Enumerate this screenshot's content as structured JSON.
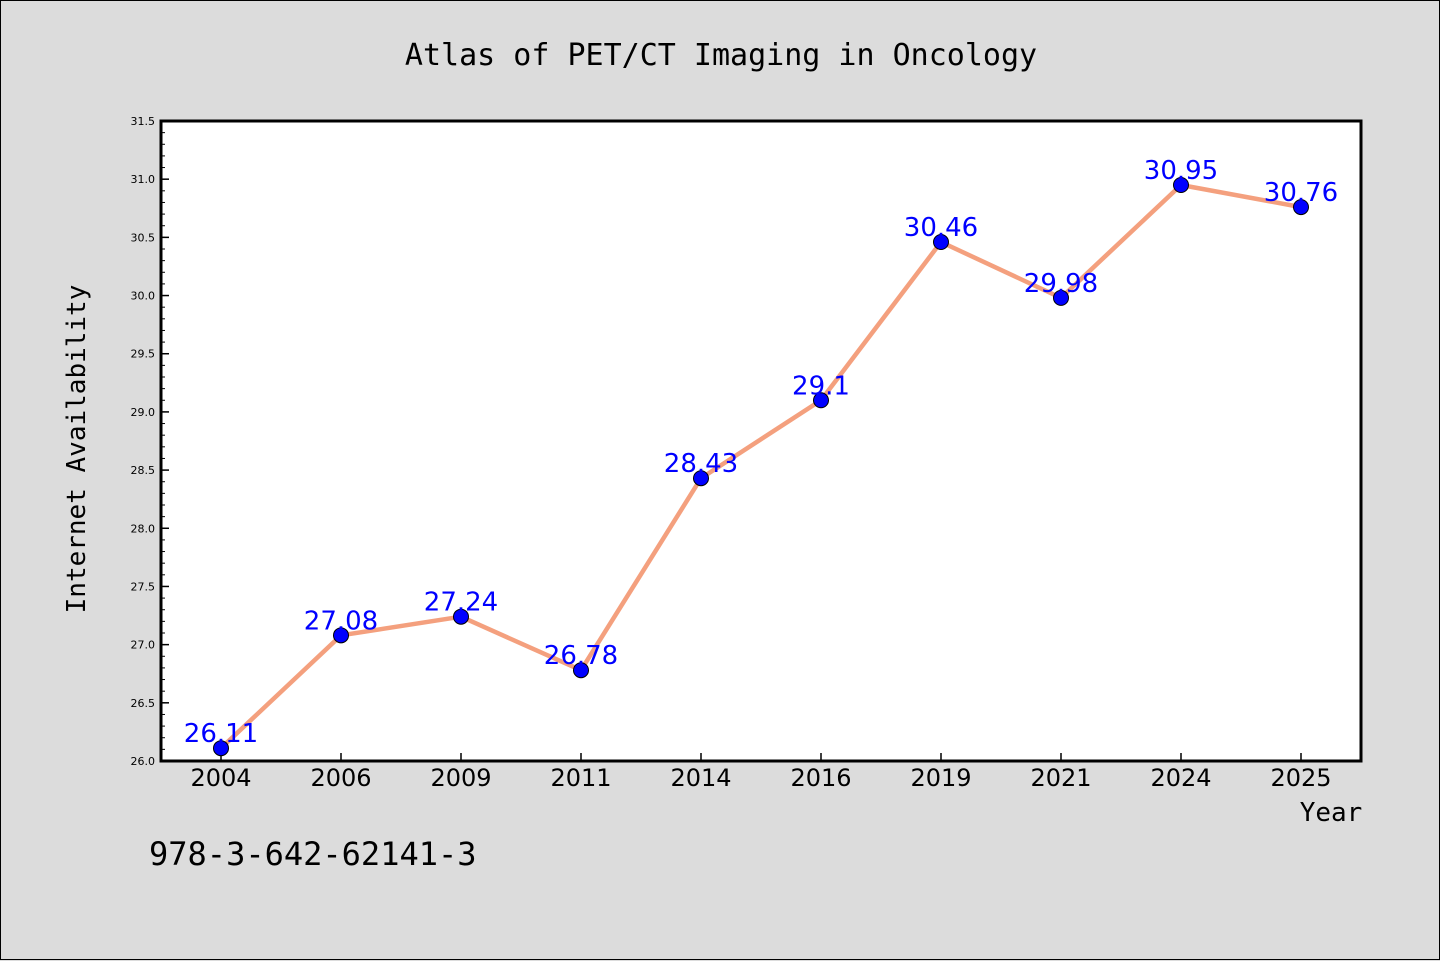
{
  "colors": {
    "background": "#dcdcdc",
    "plot_background": "#ffffff",
    "line": "#f4a07e",
    "marker": "#0000ff",
    "data_label": "#0000ff",
    "axis": "#000000"
  },
  "footer": {
    "isbn": "978-3-642-62141-3"
  },
  "chart_data": {
    "type": "line",
    "title": "Atlas of PET/CT Imaging in Oncology",
    "xlabel": "Year",
    "ylabel": "Internet Availability",
    "categories": [
      "2004",
      "2006",
      "2009",
      "2011",
      "2014",
      "2016",
      "2019",
      "2021",
      "2024",
      "2025"
    ],
    "values": [
      26.11,
      27.08,
      27.24,
      26.78,
      28.43,
      29.1,
      30.46,
      29.98,
      30.95,
      30.76
    ],
    "data_labels": [
      "26.11",
      "27.08",
      "27.24",
      "26.78",
      "28.43",
      "29.1",
      "30.46",
      "29.98",
      "30.95",
      "30.76"
    ],
    "ylim": [
      26.0,
      31.5
    ],
    "yticks": [
      "26.0",
      "26.5",
      "27.0",
      "27.5",
      "28.0",
      "28.5",
      "29.0",
      "29.5",
      "30.0",
      "30.5",
      "31.0",
      "31.5"
    ],
    "grid": false,
    "legend": "none"
  }
}
